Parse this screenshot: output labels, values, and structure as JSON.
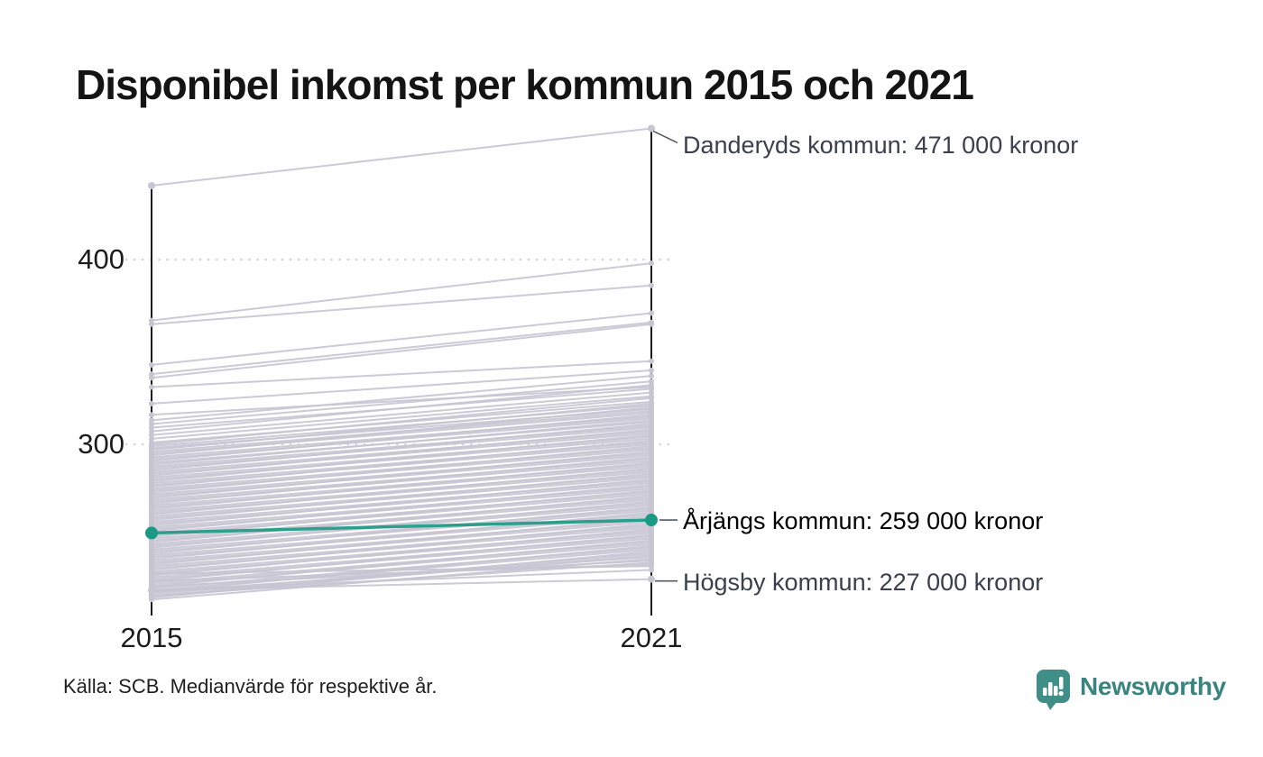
{
  "title": "Disponibel inkomst per kommun 2015 och 2021",
  "source": "Källa: SCB. Medianvärde för respektive år.",
  "branding": {
    "name": "Newsworthy",
    "icon_color": "#3f8f88",
    "text_color": "#38847e"
  },
  "colors": {
    "background": "#ffffff",
    "title_text": "#141414",
    "axis": "#1a1a1a",
    "grid": "#d6d6d6",
    "line": "#c7c5d2",
    "highlight": "#1a9a84",
    "connector": "#555a63",
    "annotation_text": "#3a3f4d",
    "highlight_text": "#000000"
  },
  "chart_data": {
    "type": "line",
    "subtype": "slope-chart",
    "x": [
      2015,
      2021
    ],
    "x_labels": [
      "2015",
      "2021"
    ],
    "y_ticks": [
      {
        "value": 400,
        "label": "400"
      },
      {
        "value": 300,
        "label": "300"
      }
    ],
    "ylim": [
      207,
      475
    ],
    "grid": "dotted-horizontal",
    "legend_position": "none",
    "value_unit": "kronor (tusental)",
    "highlighted_series": {
      "name": "Årjängs kommun",
      "values": [
        252,
        259
      ],
      "label": "Årjängs kommun: 259 000 kronor"
    },
    "labeled_series": [
      {
        "name": "Danderyds kommun",
        "values": [
          440,
          471
        ],
        "label": "Danderyds kommun: 471 000 kronor"
      },
      {
        "name": "Högsby kommun",
        "values": [
          221,
          227
        ],
        "label": "Högsby kommun: 227 000 kronor"
      }
    ],
    "background_series": [
      [
        367,
        398
      ],
      [
        365,
        386
      ],
      [
        343,
        371
      ],
      [
        338,
        366
      ],
      [
        336,
        365
      ],
      [
        331,
        345
      ],
      [
        322,
        340
      ],
      [
        316,
        331
      ],
      [
        313,
        337
      ],
      [
        311,
        334
      ],
      [
        309,
        330
      ],
      [
        307,
        332
      ],
      [
        305,
        328
      ],
      [
        303,
        326
      ],
      [
        301,
        323
      ],
      [
        300,
        325
      ],
      [
        299,
        321
      ],
      [
        298,
        319
      ],
      [
        297,
        322
      ],
      [
        296,
        318
      ],
      [
        295,
        317
      ],
      [
        294,
        320
      ],
      [
        293,
        315
      ],
      [
        292,
        314
      ],
      [
        291,
        316
      ],
      [
        290,
        312
      ],
      [
        289,
        313
      ],
      [
        288,
        310
      ],
      [
        287,
        309
      ],
      [
        286,
        311
      ],
      [
        285,
        307
      ],
      [
        284,
        306
      ],
      [
        283,
        308
      ],
      [
        282,
        304
      ],
      [
        281,
        303
      ],
      [
        280,
        305
      ],
      [
        279,
        301
      ],
      [
        278,
        300
      ],
      [
        277,
        302
      ],
      [
        276,
        298
      ],
      [
        275,
        297
      ],
      [
        274,
        299
      ],
      [
        273,
        295
      ],
      [
        272,
        294
      ],
      [
        271,
        296
      ],
      [
        270,
        292
      ],
      [
        269,
        291
      ],
      [
        268,
        293
      ],
      [
        267,
        289
      ],
      [
        266,
        288
      ],
      [
        265,
        290
      ],
      [
        264,
        286
      ],
      [
        263,
        285
      ],
      [
        262,
        287
      ],
      [
        261,
        283
      ],
      [
        260,
        282
      ],
      [
        259,
        284
      ],
      [
        258,
        280
      ],
      [
        257,
        279
      ],
      [
        256,
        281
      ],
      [
        255,
        277
      ],
      [
        254,
        276
      ],
      [
        253,
        278
      ],
      [
        252,
        274
      ],
      [
        251,
        273
      ],
      [
        250,
        275
      ],
      [
        249,
        271
      ],
      [
        248,
        270
      ],
      [
        247,
        272
      ],
      [
        246,
        268
      ],
      [
        245,
        267
      ],
      [
        244,
        269
      ],
      [
        243,
        265
      ],
      [
        242,
        264
      ],
      [
        241,
        266
      ],
      [
        240,
        262
      ],
      [
        239,
        261
      ],
      [
        238,
        263
      ],
      [
        237,
        259
      ],
      [
        236,
        258
      ],
      [
        235,
        260
      ],
      [
        234,
        256
      ],
      [
        233,
        255
      ],
      [
        232,
        257
      ],
      [
        231,
        253
      ],
      [
        230,
        252
      ],
      [
        229,
        254
      ],
      [
        228,
        250
      ],
      [
        227,
        249
      ],
      [
        226,
        251
      ],
      [
        225,
        247
      ],
      [
        224,
        246
      ],
      [
        223,
        248
      ],
      [
        222,
        244
      ],
      [
        221,
        243
      ],
      [
        220,
        245
      ],
      [
        219,
        241
      ],
      [
        218,
        240
      ],
      [
        217,
        242
      ],
      [
        216,
        238
      ],
      [
        218,
        236
      ],
      [
        220,
        239
      ],
      [
        223,
        237
      ],
      [
        226,
        235
      ],
      [
        230,
        234
      ],
      [
        221,
        232
      ]
    ]
  }
}
